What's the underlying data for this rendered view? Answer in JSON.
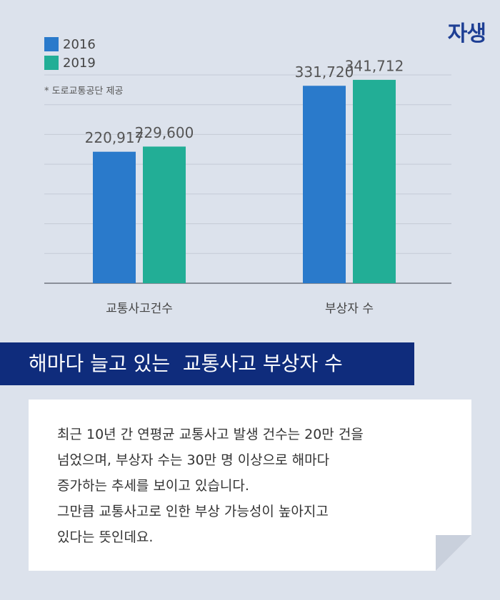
{
  "logo": "자생",
  "chart_data": {
    "type": "bar",
    "note": "* 도로교통공단 제공",
    "categories": [
      "교통사고건수",
      "부상자 수"
    ],
    "series": [
      {
        "name": "2016",
        "color": "#2a7acb",
        "values": [
          220917,
          331720
        ],
        "value_labels": [
          "220,917",
          "331,720"
        ]
      },
      {
        "name": "2019",
        "color": "#22ae96",
        "values": [
          229600,
          341712
        ],
        "value_labels": [
          "229,600",
          "341,712"
        ]
      }
    ],
    "ylim": [
      0,
      350000
    ],
    "yticks": [
      0,
      50000,
      100000,
      150000,
      200000,
      250000,
      300000,
      350000
    ],
    "grid": true,
    "legend": "top-left"
  },
  "headline": "해마다 늘고 있는  교통사고 부상자 수",
  "body": [
    "최근 10년 간 연평균 교통사고 발생 건수는 20만 건을",
    "넘었으며, 부상자 수는 30만 명 이상으로 해마다",
    "증가하는 추세를 보이고 있습니다.",
    "그만큼 교통사고로 인한 부상 가능성이 높아지고",
    "있다는 뜻인데요."
  ]
}
